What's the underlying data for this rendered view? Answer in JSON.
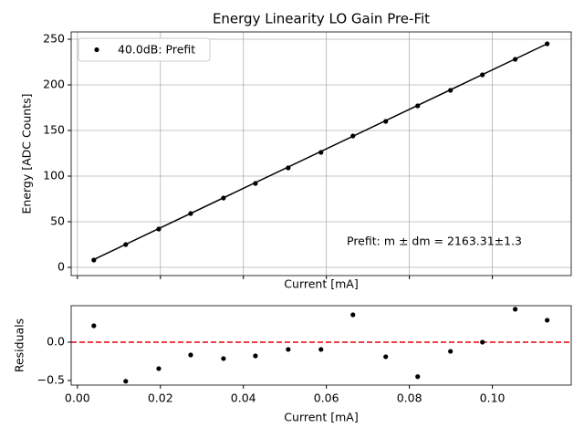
{
  "chart_data": [
    {
      "type": "scatter",
      "title": "Energy Linearity LO Gain Pre-Fit",
      "xlabel": "Current [mA]",
      "ylabel": "Energy [ADC Counts]",
      "x": [
        0.00396,
        0.01165,
        0.0196,
        0.0273,
        0.0352,
        0.0429,
        0.0508,
        0.0587,
        0.0664,
        0.0743,
        0.082,
        0.0899,
        0.0976,
        0.1055,
        0.1132
      ],
      "series": [
        {
          "name": "40.0dB: Prefit",
          "color": "#000000",
          "values": [
            8,
            25,
            42,
            59,
            76,
            92,
            109,
            126,
            144,
            160,
            177,
            194,
            211,
            228,
            245
          ]
        }
      ],
      "fit_line": {
        "x": [
          0.00396,
          0.1132
        ],
        "values": [
          8.6,
          245
        ],
        "color": "#000000"
      },
      "annotation": "Prefit: m ± dm = 2163.31±1.3",
      "xlim": [
        -0.0015,
        0.119
      ],
      "ylim": [
        -9,
        258
      ],
      "xticks": [
        0,
        0.02,
        0.04,
        0.06,
        0.08,
        0.1
      ],
      "yticks": [
        0,
        50,
        100,
        150,
        200,
        250
      ],
      "grid": true,
      "legend": "upper left"
    },
    {
      "type": "scatter",
      "xlabel": "Current [mA]",
      "ylabel": "Residuals",
      "x": [
        0.00396,
        0.01165,
        0.0196,
        0.0273,
        0.0352,
        0.0429,
        0.0508,
        0.0587,
        0.0664,
        0.0743,
        0.082,
        0.0899,
        0.0976,
        0.1055,
        0.1132
      ],
      "series": [
        {
          "color": "#000000",
          "values": [
            0.214,
            -0.51,
            -0.345,
            -0.167,
            -0.214,
            -0.179,
            -0.095,
            -0.095,
            0.357,
            -0.19,
            -0.45,
            -0.12,
            0.0,
            0.43,
            0.286
          ]
        }
      ],
      "reference_line": {
        "value": 0,
        "color": "#e8000b"
      },
      "xlim": [
        -0.0015,
        0.119
      ],
      "ylim": [
        -0.56,
        0.476
      ],
      "xticks": [
        {
          "value": 0,
          "label": "0.00"
        },
        {
          "value": 0.02,
          "label": "0.02"
        },
        {
          "value": 0.04,
          "label": "0.04"
        },
        {
          "value": 0.06,
          "label": "0.06"
        },
        {
          "value": 0.08,
          "label": "0.08"
        },
        {
          "value": 0.1,
          "label": "0.10"
        }
      ],
      "yticks": [
        {
          "value": -0.5,
          "label": "−0.5"
        },
        {
          "value": 0,
          "label": "0.0"
        }
      ],
      "grid": false
    }
  ]
}
